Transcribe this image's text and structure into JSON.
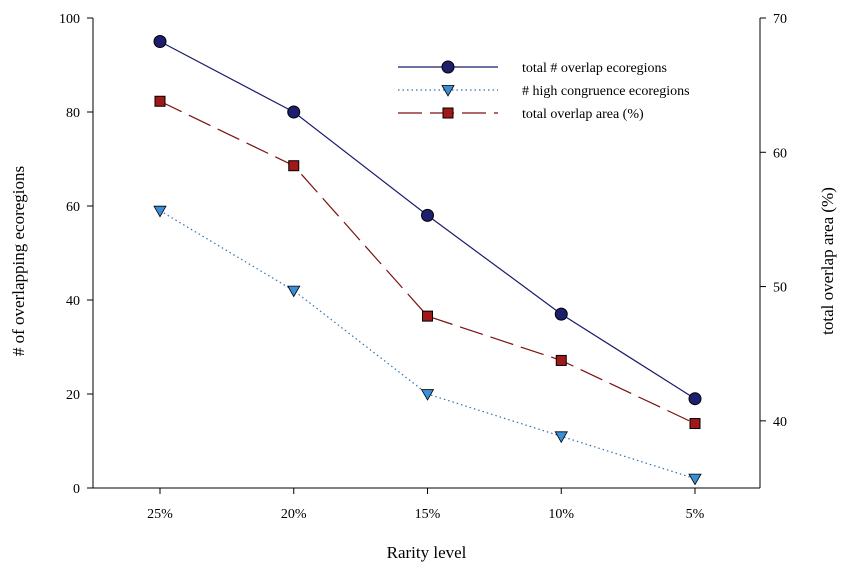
{
  "chart_data": {
    "type": "line",
    "categories": [
      "25%",
      "20%",
      "15%",
      "10%",
      "5%"
    ],
    "xlabel": "Rarity level",
    "ylabel_left": "# of overlapping ecoregions",
    "ylabel_right": "total overlap area (%)",
    "ylim_left": [
      0,
      100
    ],
    "yticks_left": [
      0,
      20,
      40,
      60,
      80,
      100
    ],
    "ylim_right": [
      35,
      70
    ],
    "yticks_right": [
      40,
      50,
      60,
      70
    ],
    "grid": false,
    "legend_position": "top-right",
    "series": [
      {
        "name": "total # overlap ecoregions",
        "axis": "left",
        "values": [
          95,
          80,
          58,
          37,
          19
        ],
        "line_style": "solid",
        "marker": "circle",
        "line_color": "#1a1a6e",
        "marker_fill": "#1e1e6e"
      },
      {
        "name": "# high congruence ecoregions",
        "axis": "left",
        "values": [
          59,
          42,
          20,
          11,
          2
        ],
        "line_style": "dotted",
        "marker": "triangle-down",
        "line_color": "#3070b0",
        "marker_fill": "#3b8fd6"
      },
      {
        "name": "total overlap area (%)",
        "axis": "right",
        "values": [
          63.8,
          59.0,
          47.8,
          44.5,
          39.8
        ],
        "line_style": "dashed",
        "marker": "square",
        "line_color": "#7a1010",
        "marker_fill": "#a01818"
      }
    ]
  }
}
